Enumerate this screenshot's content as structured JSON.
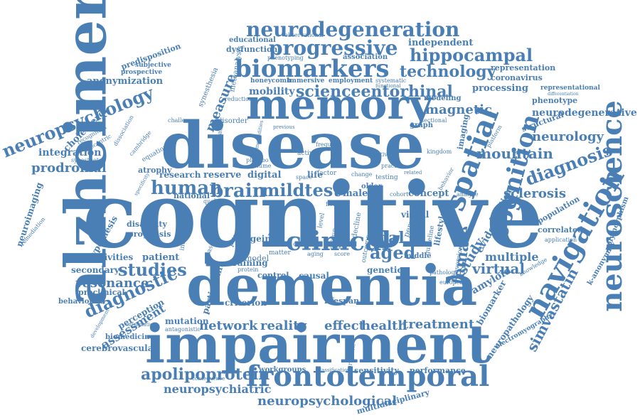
{
  "cloud": {
    "colors": {
      "word": "#4a7fb5",
      "background": "#ffffff"
    },
    "words": [
      {
        "text": "cognitive"
      },
      {
        "text": "disease"
      },
      {
        "text": "alzheimer"
      },
      {
        "text": "dementia"
      },
      {
        "text": "impairment"
      },
      {
        "text": "memory"
      },
      {
        "text": "frontotemporal"
      },
      {
        "text": "neuroscience"
      },
      {
        "text": "navigation"
      },
      {
        "text": "biomarkers"
      },
      {
        "text": "neurodegeneration"
      },
      {
        "text": "progressive"
      },
      {
        "text": "spatial"
      },
      {
        "text": "cognition"
      },
      {
        "text": "neuropsychology"
      },
      {
        "text": "scienceentorhinal"
      },
      {
        "text": "clinical"
      },
      {
        "text": "studies"
      },
      {
        "text": "diagnostic"
      },
      {
        "text": "diagnosis"
      },
      {
        "text": "brain"
      },
      {
        "text": "human"
      },
      {
        "text": "mildtest"
      },
      {
        "text": "hippocampal"
      },
      {
        "text": "technology"
      },
      {
        "text": "neuropsychological"
      },
      {
        "text": "apolipoprotein"
      },
      {
        "text": "neuropsychiatric"
      },
      {
        "text": "network"
      },
      {
        "text": "reality"
      },
      {
        "text": "effect"
      },
      {
        "text": "health"
      },
      {
        "text": "treatment"
      },
      {
        "text": "trial"
      },
      {
        "text": "aged"
      },
      {
        "text": "female"
      },
      {
        "text": "study"
      },
      {
        "text": "virtual"
      },
      {
        "text": "multiple"
      },
      {
        "text": "simvastatin"
      },
      {
        "text": "mountain"
      },
      {
        "text": "neurology"
      },
      {
        "text": "sclerosis"
      },
      {
        "text": "magnetic"
      },
      {
        "text": "resonance"
      },
      {
        "text": "assessment"
      },
      {
        "text": "prodromal"
      },
      {
        "text": "integration"
      },
      {
        "text": "anonymization"
      },
      {
        "text": "mobility"
      },
      {
        "text": "measure"
      },
      {
        "text": "neurodegenerative"
      },
      {
        "text": "independent"
      },
      {
        "text": "representation"
      },
      {
        "text": "coronavirus"
      },
      {
        "text": "processing"
      },
      {
        "text": "phenotype"
      },
      {
        "text": "representational"
      },
      {
        "text": "structural"
      },
      {
        "text": "neuropathology"
      },
      {
        "text": "polymorphism"
      },
      {
        "text": "k-anonymity"
      },
      {
        "text": "electromyography"
      },
      {
        "text": "amyloid"
      },
      {
        "text": "biomarker"
      },
      {
        "text": "correlated"
      },
      {
        "text": "population"
      },
      {
        "text": "educational"
      },
      {
        "text": "dysfunction"
      },
      {
        "text": "association"
      },
      {
        "text": "predisposition"
      },
      {
        "text": "subjective"
      },
      {
        "text": "prospective"
      },
      {
        "text": "cholesterol"
      },
      {
        "text": "neuroimaging"
      },
      {
        "text": "cerebrovascular"
      },
      {
        "text": "biomedicine"
      },
      {
        "text": "behavioural"
      },
      {
        "text": "preclinical"
      },
      {
        "text": "secondary"
      },
      {
        "text": "activities"
      },
      {
        "text": "patient"
      },
      {
        "text": "training"
      },
      {
        "text": "criterion"
      },
      {
        "text": "mutation"
      },
      {
        "text": "perception"
      },
      {
        "text": "ageing"
      },
      {
        "text": "reserve"
      },
      {
        "text": "digital"
      },
      {
        "text": "research"
      },
      {
        "text": "national"
      },
      {
        "text": "atrophy"
      },
      {
        "text": "disability"
      },
      {
        "text": "prognosis"
      },
      {
        "text": "hypothesis"
      },
      {
        "text": "participant"
      },
      {
        "text": "concept"
      },
      {
        "text": "life"
      },
      {
        "text": "male"
      },
      {
        "text": "older"
      },
      {
        "text": "modeling"
      },
      {
        "text": "imaging"
      },
      {
        "text": "lifestyle"
      },
      {
        "text": "evidence"
      },
      {
        "text": "function"
      },
      {
        "text": "visual"
      },
      {
        "text": "genetic"
      },
      {
        "text": "middle"
      },
      {
        "text": "causal"
      },
      {
        "text": "control"
      },
      {
        "text": "lifespan"
      },
      {
        "text": "workgroups"
      },
      {
        "text": "sensitivity"
      },
      {
        "text": "performance"
      },
      {
        "text": "multidisciplinary"
      },
      {
        "text": "graph"
      },
      {
        "text": "employment"
      },
      {
        "text": "immersive"
      },
      {
        "text": "honeycomb"
      },
      {
        "text": "reduction"
      },
      {
        "text": "observational"
      },
      {
        "text": "phenotyping"
      },
      {
        "text": "synesthesia"
      },
      {
        "text": "metaanalysis"
      },
      {
        "text": "recognition"
      },
      {
        "text": "egocentric"
      },
      {
        "text": "synesthetes"
      },
      {
        "text": "remediation"
      },
      {
        "text": "dissociation"
      },
      {
        "text": "equation"
      },
      {
        "text": "vascular"
      },
      {
        "text": "individual"
      },
      {
        "text": "provide"
      },
      {
        "text": "privacy"
      },
      {
        "text": "score"
      },
      {
        "text": "decline"
      },
      {
        "text": "outcome"
      },
      {
        "text": "person"
      },
      {
        "text": "guideline"
      },
      {
        "text": "group"
      },
      {
        "text": "level"
      },
      {
        "text": "risk"
      },
      {
        "text": "adult"
      },
      {
        "text": "factor"
      },
      {
        "text": "testing"
      },
      {
        "text": "change"
      },
      {
        "text": "space"
      },
      {
        "text": "placebo"
      },
      {
        "text": "volume"
      },
      {
        "text": "model"
      },
      {
        "text": "associative"
      },
      {
        "text": "disorder"
      },
      {
        "text": "challenge"
      },
      {
        "text": "activity"
      },
      {
        "text": "positive"
      },
      {
        "text": "kingdom"
      },
      {
        "text": "european"
      },
      {
        "text": "conversion"
      },
      {
        "text": "knowledge"
      },
      {
        "text": "analyse"
      },
      {
        "text": "application"
      },
      {
        "text": "platform"
      },
      {
        "text": "pathology"
      },
      {
        "text": "matter"
      },
      {
        "text": "aging"
      },
      {
        "text": "task"
      },
      {
        "text": "field"
      },
      {
        "text": "care"
      },
      {
        "text": "protein"
      },
      {
        "text": "quality"
      },
      {
        "text": "classification"
      },
      {
        "text": "parkinson"
      },
      {
        "text": "consequence"
      },
      {
        "text": "antagonistic"
      },
      {
        "text": "development"
      },
      {
        "text": "information"
      },
      {
        "text": "specificity"
      },
      {
        "text": "cambridge"
      },
      {
        "text": "systematic"
      },
      {
        "text": "cohort"
      },
      {
        "text": "frequent"
      },
      {
        "text": "sectional"
      },
      {
        "text": "functional"
      },
      {
        "text": "behavior"
      },
      {
        "text": "related"
      },
      {
        "text": "practice"
      },
      {
        "text": "previous"
      },
      {
        "text": "comorbidities"
      },
      {
        "text": "differentiation"
      }
    ]
  }
}
